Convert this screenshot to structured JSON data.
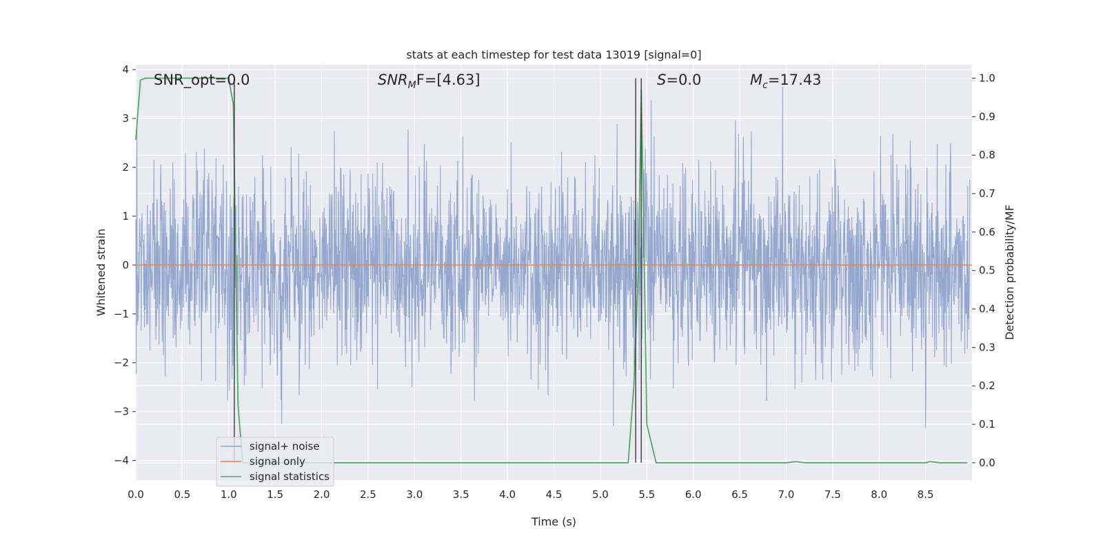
{
  "chart_data": {
    "type": "line",
    "title": "stats at each timestep for test data 13019 [signal=0]",
    "xlabel": "Time (s)",
    "ylabel_left": "Whitened strain",
    "ylabel_right": "Detection probability/MF",
    "xlim": [
      0.0,
      9.0
    ],
    "ylim_left": [
      -4.4,
      4.1
    ],
    "ylim_right": [
      -0.045,
      1.035
    ],
    "x_ticks": [
      0.0,
      0.5,
      1.0,
      1.5,
      2.0,
      2.5,
      3.0,
      3.5,
      4.0,
      4.5,
      5.0,
      5.5,
      6.0,
      6.5,
      7.0,
      7.5,
      8.0,
      8.5
    ],
    "x_tick_labels": [
      "0.0",
      "0.5",
      "1.0",
      "1.5",
      "2.0",
      "2.5",
      "3.0",
      "3.5",
      "4.0",
      "4.5",
      "5.0",
      "5.5",
      "6.0",
      "6.5",
      "7.0",
      "7.5",
      "8.0",
      "8.5"
    ],
    "y_ticks_left": [
      -4,
      -3,
      -2,
      -1,
      0,
      1,
      2,
      3,
      4
    ],
    "y_tick_labels_left": [
      "−4",
      "−3",
      "−2",
      "−1",
      "0",
      "1",
      "2",
      "3",
      "4"
    ],
    "y_ticks_right": [
      0.0,
      0.1,
      0.2,
      0.3,
      0.4,
      0.5,
      0.6,
      0.7,
      0.8,
      0.9,
      1.0
    ],
    "y_tick_labels_right": [
      "0.0",
      "0.1",
      "0.2",
      "0.3",
      "0.4",
      "0.5",
      "0.6",
      "0.7",
      "0.8",
      "0.9",
      "1.0"
    ],
    "grid": true,
    "legend_position": "lower-left",
    "annotations": {
      "snr_opt": "SNR_opt=0.0",
      "snr_mf_italic": "SNR",
      "snr_mf_sub": "M",
      "snr_mf_tail": "F=[4.63]",
      "s_italic": "S",
      "s_tail": "=0.0",
      "mc_italic": "M",
      "mc_sub": "c",
      "mc_tail": "=17.43"
    },
    "series": [
      {
        "name": "signal+ noise",
        "color": "#8ea3cc",
        "axis": "left",
        "sample_rate_hz": 256,
        "amplitude_std": 1.0,
        "seed": 13019
      },
      {
        "name": "signal only",
        "color": "#dd8452",
        "axis": "left",
        "x": [
          0.0,
          9.0
        ],
        "y": [
          0.0,
          0.0
        ]
      },
      {
        "name": "signal statistics",
        "color": "#55a868",
        "axis": "right",
        "x": [
          0.0,
          0.05,
          0.1,
          0.5,
          0.9,
          1.0,
          1.05,
          1.1,
          1.15,
          2.0,
          3.0,
          4.0,
          5.0,
          5.3,
          5.36,
          5.41,
          5.44,
          5.46,
          5.5,
          5.6,
          6.0,
          7.0,
          7.1,
          7.2,
          8.0,
          8.5,
          8.55,
          8.65,
          8.95
        ],
        "y": [
          0.84,
          0.995,
          1.0,
          1.0,
          1.0,
          1.0,
          0.93,
          0.15,
          0.0,
          0.0,
          0.0,
          0.0,
          0.0,
          0.0,
          0.2,
          0.5,
          0.97,
          0.7,
          0.1,
          0.0,
          0.0,
          0.0,
          0.003,
          0.0,
          0.0,
          0.0,
          0.003,
          0.0,
          0.0
        ]
      }
    ],
    "vertical_lines": [
      1.06,
      5.38,
      5.44
    ]
  }
}
